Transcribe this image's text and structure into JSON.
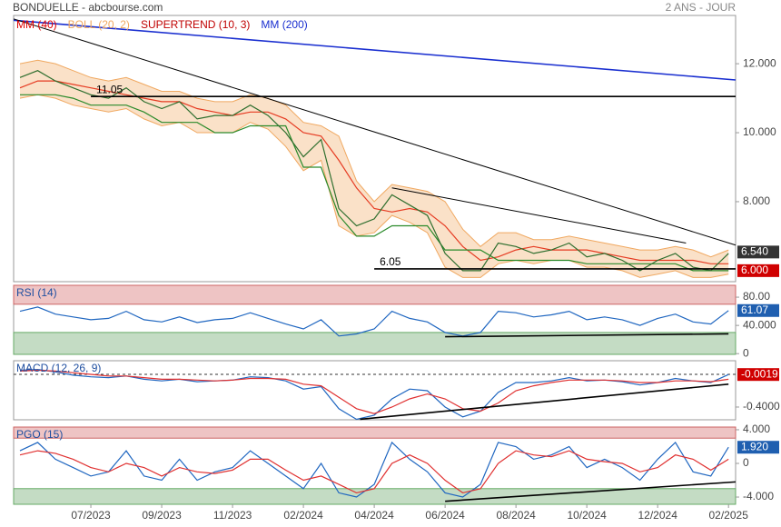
{
  "chart_data": [
    {
      "type": "line",
      "title": "BONDUELLE - abcbourse.com",
      "subtitle": "2 ANS - JOUR",
      "xlim": [
        -1.09,
        9.1
      ],
      "x": [
        -1,
        -0.75,
        -0.5,
        -0.25,
        0,
        0.25,
        0.5,
        0.75,
        1,
        1.25,
        1.5,
        1.75,
        2,
        2.25,
        2.5,
        2.75,
        3,
        3.25,
        3.5,
        3.75,
        4,
        4.25,
        4.5,
        4.75,
        5,
        5.25,
        5.5,
        5.75,
        6,
        6.25,
        6.5,
        6.75,
        7,
        7.25,
        7.5,
        7.75,
        8,
        8.25,
        8.5,
        8.75,
        9
      ],
      "ylim": [
        5.68,
        13.4
      ],
      "yticks": [
        {
          "value": 12,
          "label": "12.000"
        },
        {
          "value": 10,
          "label": "10.000"
        },
        {
          "value": 8,
          "label": "8.000"
        }
      ],
      "series": [
        {
          "name": "MM (40)",
          "color": "#e00000",
          "values": [
            11.3,
            11.5,
            11.5,
            11.4,
            11.3,
            11.2,
            11.1,
            11.0,
            10.9,
            10.9,
            10.7,
            10.6,
            10.5,
            10.6,
            10.6,
            10.4,
            10.0,
            9.9,
            9.2,
            8.4,
            7.8,
            7.7,
            7.8,
            7.7,
            7.3,
            6.7,
            6.3,
            6.4,
            6.6,
            6.7,
            6.6,
            6.6,
            6.6,
            6.5,
            6.4,
            6.3,
            6.3,
            6.3,
            6.3,
            6.2,
            6.2
          ]
        },
        {
          "name": "BOLL (20, 2)",
          "color": "#f0a860",
          "type": "band",
          "upper": [
            12.0,
            12.1,
            12.0,
            11.8,
            11.6,
            11.5,
            11.6,
            11.4,
            11.2,
            11.2,
            11.0,
            10.9,
            10.9,
            11.1,
            11.0,
            10.8,
            10.3,
            10.2,
            9.9,
            8.6,
            8.0,
            8.5,
            8.4,
            8.3,
            8.0,
            7.2,
            6.7,
            7.1,
            7.1,
            6.9,
            6.9,
            7.0,
            6.9,
            6.8,
            6.7,
            6.6,
            6.6,
            6.7,
            6.6,
            6.4,
            6.6
          ],
          "lower": [
            11.0,
            11.1,
            11.0,
            10.8,
            10.7,
            10.6,
            10.7,
            10.4,
            10.2,
            10.3,
            10.0,
            10.0,
            10.0,
            10.3,
            10.1,
            9.6,
            8.9,
            9.2,
            7.3,
            7.0,
            7.1,
            7.6,
            7.4,
            7.1,
            6.1,
            5.8,
            5.8,
            6.2,
            6.3,
            6.2,
            6.3,
            6.3,
            6.1,
            6.1,
            6.0,
            5.8,
            5.9,
            6.0,
            5.8,
            5.8,
            5.9
          ]
        },
        {
          "name": "SUPERTREND (10, 3)",
          "color": "#c00000",
          "line_color": "#2a8a2a",
          "values": [
            11.1,
            11.1,
            11.1,
            11.0,
            10.8,
            10.8,
            10.8,
            10.6,
            10.3,
            10.3,
            10.3,
            10.0,
            10.0,
            10.2,
            10.2,
            10.2,
            9.0,
            9.0,
            7.6,
            7.0,
            7.0,
            7.3,
            7.3,
            7.3,
            6.6,
            6.6,
            6.6,
            6.3,
            6.3,
            6.3,
            6.3,
            6.3,
            6.2,
            6.2,
            6.2,
            6.2,
            6.2,
            6.2,
            6.0,
            6.0,
            6.0
          ]
        },
        {
          "name": "MM (200)",
          "color": "#1a2fd0",
          "x": [
            -1.09,
            9.1
          ],
          "values": [
            13.26,
            11.53
          ]
        },
        {
          "color": "#2e6e2e",
          "values": [
            11.6,
            11.8,
            11.5,
            11.3,
            11.1,
            11.0,
            11.3,
            10.9,
            10.7,
            10.9,
            10.4,
            10.5,
            10.5,
            10.8,
            10.5,
            10.0,
            9.3,
            9.8,
            7.8,
            7.3,
            7.5,
            8.2,
            7.9,
            7.6,
            6.5,
            6.0,
            6.0,
            6.8,
            6.7,
            6.5,
            6.6,
            6.8,
            6.4,
            6.5,
            6.3,
            6.0,
            6.3,
            6.5,
            6.1,
            6.0,
            6.5
          ]
        }
      ],
      "levels": [
        {
          "value": 11.05,
          "label": "11.05",
          "x": [
            0,
            9.1
          ]
        },
        {
          "value": 6.05,
          "label": "6.05",
          "x": [
            4,
            9.1
          ]
        }
      ],
      "trendlines": [
        {
          "x": [
            -1.09,
            9.1
          ],
          "values": [
            13.3,
            6.74
          ]
        },
        {
          "x": [
            4.25,
            8.4
          ],
          "values": [
            8.4,
            6.8
          ]
        }
      ],
      "badges": [
        {
          "value": 6.54,
          "label": "6.540",
          "color": "#333333"
        },
        {
          "value": 6.0,
          "label": "6.000",
          "color": "#d00000"
        }
      ]
    },
    {
      "type": "line",
      "title": "RSI (14)",
      "xlim": [
        -1.09,
        9.1
      ],
      "x": [
        -1,
        -0.75,
        -0.5,
        -0.25,
        0,
        0.25,
        0.5,
        0.75,
        1,
        1.25,
        1.5,
        1.75,
        2,
        2.25,
        2.5,
        2.75,
        3,
        3.25,
        3.5,
        3.75,
        4,
        4.25,
        4.5,
        4.75,
        5,
        5.25,
        5.5,
        5.75,
        6,
        6.25,
        6.5,
        6.75,
        7,
        7.25,
        7.5,
        7.75,
        8,
        8.25,
        8.5,
        8.75,
        9
      ],
      "ylim": [
        -1,
        96.8
      ],
      "yticks": [
        {
          "value": 80,
          "label": "80.00"
        },
        {
          "value": 40,
          "label": "40.000"
        },
        0
      ],
      "upper_zone": 70,
      "lower_zone": 30,
      "series": [
        {
          "color": "#1f66c0",
          "values": [
            60,
            66,
            56,
            52,
            48,
            50,
            60,
            48,
            45,
            52,
            44,
            48,
            50,
            58,
            50,
            42,
            35,
            48,
            25,
            28,
            35,
            60,
            50,
            45,
            30,
            25,
            30,
            60,
            58,
            52,
            55,
            60,
            48,
            52,
            48,
            40,
            50,
            56,
            45,
            42,
            61.07
          ]
        }
      ],
      "trendlines": [
        {
          "x": [
            5,
            9
          ],
          "values": [
            24,
            28
          ]
        }
      ],
      "badges": [
        {
          "value": 61.07,
          "label": "61.07",
          "color": "#1f5fb0"
        }
      ]
    },
    {
      "type": "line",
      "title": "MACD (12, 26, 9)",
      "xlim": [
        -1.09,
        9.1
      ],
      "x": [
        -1,
        -0.75,
        -0.5,
        -0.25,
        0,
        0.25,
        0.5,
        0.75,
        1,
        1.25,
        1.5,
        1.75,
        2,
        2.25,
        2.5,
        2.75,
        3,
        3.25,
        3.5,
        3.75,
        4,
        4.25,
        4.5,
        4.75,
        5,
        5.25,
        5.5,
        5.75,
        6,
        6.25,
        6.5,
        6.75,
        7,
        7.25,
        7.5,
        7.75,
        8,
        8.25,
        8.5,
        8.75,
        9
      ],
      "ylim": [
        -0.556,
        0.167
      ],
      "yticks": [
        {
          "value": -0.4,
          "label": "-0.4000"
        }
      ],
      "zero_line": true,
      "series": [
        {
          "color": "#1f66c0",
          "values": [
            0.05,
            0.06,
            0.03,
            -0.01,
            -0.03,
            -0.04,
            -0.02,
            -0.06,
            -0.08,
            -0.06,
            -0.09,
            -0.08,
            -0.07,
            -0.03,
            -0.04,
            -0.08,
            -0.18,
            -0.15,
            -0.42,
            -0.55,
            -0.5,
            -0.3,
            -0.18,
            -0.2,
            -0.4,
            -0.52,
            -0.45,
            -0.22,
            -0.1,
            -0.1,
            -0.08,
            -0.04,
            -0.08,
            -0.07,
            -0.09,
            -0.13,
            -0.1,
            -0.05,
            -0.08,
            -0.1,
            -0.0019
          ]
        },
        {
          "color": "#e03030",
          "values": [
            0.04,
            0.05,
            0.04,
            0.02,
            0.0,
            -0.02,
            -0.02,
            -0.04,
            -0.06,
            -0.06,
            -0.07,
            -0.08,
            -0.07,
            -0.05,
            -0.05,
            -0.06,
            -0.12,
            -0.14,
            -0.28,
            -0.42,
            -0.48,
            -0.4,
            -0.3,
            -0.24,
            -0.3,
            -0.42,
            -0.45,
            -0.35,
            -0.2,
            -0.14,
            -0.1,
            -0.07,
            -0.07,
            -0.07,
            -0.08,
            -0.1,
            -0.1,
            -0.08,
            -0.08,
            -0.09,
            -0.06
          ]
        }
      ],
      "trendlines": [
        {
          "x": [
            3.8,
            9
          ],
          "values": [
            -0.55,
            -0.12
          ]
        }
      ],
      "badges": [
        {
          "value": -0.0019,
          "label": "-0.0019",
          "color": "#d00000"
        }
      ]
    },
    {
      "type": "line",
      "title": "PGO (15)",
      "xlim": [
        -1.09,
        9.1
      ],
      "x": [
        -1,
        -0.75,
        -0.5,
        -0.25,
        0,
        0.25,
        0.5,
        0.75,
        1,
        1.25,
        1.5,
        1.75,
        2,
        2.25,
        2.5,
        2.75,
        3,
        3.25,
        3.5,
        3.75,
        4,
        4.25,
        4.5,
        4.75,
        5,
        5.25,
        5.5,
        5.75,
        6,
        6.25,
        6.5,
        6.75,
        7,
        7.25,
        7.5,
        7.75,
        8,
        8.25,
        8.5,
        8.75,
        9
      ],
      "ylim": [
        -4.86,
        4.32
      ],
      "yticks": [
        {
          "value": 4,
          "label": "4.000"
        },
        0,
        {
          "value": -4,
          "label": "-4.000"
        }
      ],
      "upper_zone": 3,
      "lower_zone": -3,
      "series": [
        {
          "color": "#1f66c0",
          "values": [
            1.5,
            2.5,
            0.5,
            -0.5,
            -1.5,
            -1.0,
            1.5,
            -1.5,
            -2.0,
            0.5,
            -2.0,
            -1.0,
            -0.5,
            1.5,
            0.0,
            -1.5,
            -3.0,
            0.0,
            -3.5,
            -4.0,
            -2.5,
            2.5,
            0.5,
            -1.0,
            -3.5,
            -4.0,
            -2.5,
            2.5,
            2.0,
            0.5,
            1.0,
            2.0,
            -0.5,
            0.5,
            -0.5,
            -2.0,
            0.5,
            2.5,
            -1.0,
            -1.5,
            1.92
          ]
        },
        {
          "color": "#e03030",
          "values": [
            1.0,
            1.5,
            1.2,
            0.5,
            -0.5,
            -1.0,
            0.0,
            -0.5,
            -1.5,
            -0.5,
            -1.0,
            -1.2,
            -0.8,
            0.5,
            0.5,
            -0.8,
            -2.0,
            -1.5,
            -2.5,
            -3.5,
            -3.0,
            0.0,
            1.0,
            0.0,
            -2.0,
            -3.5,
            -3.0,
            0.0,
            1.5,
            1.0,
            0.8,
            1.5,
            0.5,
            0.2,
            0.0,
            -1.0,
            -0.5,
            1.0,
            0.5,
            -0.8,
            0.5
          ]
        }
      ],
      "trendlines": [
        {
          "x": [
            5,
            9.1
          ],
          "values": [
            -4.5,
            -2.2
          ]
        }
      ],
      "badges": [
        {
          "value": 1.92,
          "label": "1.920",
          "color": "#1f5fb0"
        }
      ],
      "xticks": [
        {
          "value": 0,
          "label": "07/2023"
        },
        {
          "value": 1,
          "label": "09/2023"
        },
        {
          "value": 2,
          "label": "11/2023"
        },
        {
          "value": 3,
          "label": "02/2024"
        },
        {
          "value": 4,
          "label": "04/2024"
        },
        {
          "value": 5,
          "label": "06/2024"
        },
        {
          "value": 6,
          "label": "08/2024"
        },
        {
          "value": 7,
          "label": "10/2024"
        },
        {
          "value": 8,
          "label": "12/2024"
        },
        {
          "value": 9,
          "label": "02/2025"
        }
      ]
    }
  ]
}
